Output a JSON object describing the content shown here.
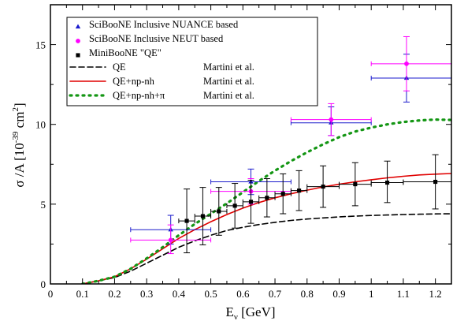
{
  "chart_data": {
    "type": "scatter",
    "xlabel": {
      "main": "E",
      "sub": "ν",
      "rest": " [GeV]"
    },
    "ylabel": {
      "main": "σ /A [10",
      "sup1": "-39",
      "mid": " cm",
      "sup2": "2",
      "end": "]"
    },
    "xlim": [
      0,
      1.25
    ],
    "ylim": [
      0,
      17.5
    ],
    "xticks": [
      0,
      0.1,
      0.2,
      0.3,
      0.4,
      0.5,
      0.6,
      0.7,
      0.8,
      0.9,
      1,
      1.1,
      1.2
    ],
    "xtick_labels": [
      "0",
      "0.1",
      "0.2",
      "0.3",
      "0.4",
      "0.5",
      "0.6",
      "0.7",
      "0.8",
      "0.9",
      "1",
      "1.1",
      "1.2"
    ],
    "yticks": [
      0,
      5,
      10,
      15
    ],
    "ytick_labels": [
      "0",
      "5",
      "10",
      "15"
    ],
    "grid": false,
    "legend_position": "top-left",
    "series": [
      {
        "name": "SciBooNE Inclusive NUANCE based",
        "kind": "points",
        "marker": "triangle",
        "color": "#1a1acc",
        "points": [
          {
            "x": 0.375,
            "y": 3.4,
            "xerr": [
              0.25,
              0.5
            ],
            "yerr": [
              2.5,
              4.3
            ]
          },
          {
            "x": 0.625,
            "y": 6.4,
            "xerr": [
              0.5,
              0.75
            ],
            "yerr": [
              5.6,
              7.2
            ]
          },
          {
            "x": 0.875,
            "y": 10.1,
            "xerr": [
              0.75,
              1.0
            ],
            "yerr": [
              9.3,
              11.1
            ]
          },
          {
            "x": 1.11,
            "y": 12.9,
            "xerr": [
              1.0,
              1.25
            ],
            "yerr": [
              11.4,
              14.4
            ]
          }
        ]
      },
      {
        "name": "SciBooNE Inclusive NEUT based",
        "kind": "points",
        "marker": "circle",
        "color": "#ff00ff",
        "points": [
          {
            "x": 0.375,
            "y": 2.75,
            "xerr": [
              0.25,
              0.5
            ],
            "yerr": [
              1.9,
              3.7
            ]
          },
          {
            "x": 0.625,
            "y": 5.8,
            "xerr": [
              0.5,
              0.75
            ],
            "yerr": [
              5.0,
              6.6
            ]
          },
          {
            "x": 0.875,
            "y": 10.3,
            "xerr": [
              0.75,
              1.0
            ],
            "yerr": [
              9.3,
              11.3
            ]
          },
          {
            "x": 1.11,
            "y": 13.8,
            "xerr": [
              1.0,
              1.25
            ],
            "yerr": [
              12.1,
              15.5
            ]
          }
        ]
      },
      {
        "name": "MiniBooNE \"QE\"",
        "kind": "points",
        "marker": "square",
        "color": "#000000",
        "points": [
          {
            "x": 0.425,
            "y": 3.95,
            "xerr": [
              0.4,
              0.45
            ],
            "yerr": [
              1.95,
              5.95
            ]
          },
          {
            "x": 0.475,
            "y": 4.25,
            "xerr": [
              0.45,
              0.5
            ],
            "yerr": [
              2.45,
              6.05
            ]
          },
          {
            "x": 0.525,
            "y": 4.55,
            "xerr": [
              0.5,
              0.55
            ],
            "yerr": [
              3.05,
              6.05
            ]
          },
          {
            "x": 0.575,
            "y": 4.9,
            "xerr": [
              0.55,
              0.6
            ],
            "yerr": [
              3.5,
              6.3
            ]
          },
          {
            "x": 0.625,
            "y": 5.15,
            "xerr": [
              0.6,
              0.65
            ],
            "yerr": [
              3.8,
              6.5
            ]
          },
          {
            "x": 0.675,
            "y": 5.4,
            "xerr": [
              0.65,
              0.7
            ],
            "yerr": [
              4.2,
              6.6
            ]
          },
          {
            "x": 0.725,
            "y": 5.65,
            "xerr": [
              0.7,
              0.75
            ],
            "yerr": [
              4.4,
              6.9
            ]
          },
          {
            "x": 0.775,
            "y": 5.85,
            "xerr": [
              0.75,
              0.8
            ],
            "yerr": [
              4.6,
              7.1
            ]
          },
          {
            "x": 0.85,
            "y": 6.1,
            "xerr": [
              0.8,
              0.9
            ],
            "yerr": [
              4.8,
              7.4
            ]
          },
          {
            "x": 0.95,
            "y": 6.25,
            "xerr": [
              0.9,
              1.0
            ],
            "yerr": [
              4.9,
              7.6
            ]
          },
          {
            "x": 1.05,
            "y": 6.35,
            "xerr": [
              1.0,
              1.1
            ],
            "yerr": [
              5.1,
              7.7
            ]
          },
          {
            "x": 1.2,
            "y": 6.4,
            "xerr": [
              1.1,
              1.3
            ],
            "yerr": [
              4.7,
              8.1
            ]
          }
        ]
      },
      {
        "name": "QE",
        "author": "Martini et al.",
        "kind": "line",
        "style": "dashed",
        "color": "#000000",
        "x": [
          0.1,
          0.15,
          0.2,
          0.25,
          0.3,
          0.35,
          0.4,
          0.45,
          0.5,
          0.55,
          0.6,
          0.65,
          0.7,
          0.75,
          0.8,
          0.85,
          0.9,
          0.95,
          1.0,
          1.05,
          1.1,
          1.15,
          1.2,
          1.25
        ],
        "y": [
          0.0,
          0.2,
          0.4,
          0.8,
          1.3,
          1.8,
          2.3,
          2.7,
          3.05,
          3.35,
          3.55,
          3.72,
          3.86,
          3.98,
          4.07,
          4.14,
          4.2,
          4.25,
          4.29,
          4.32,
          4.35,
          4.37,
          4.39,
          4.4
        ]
      },
      {
        "name": "QE+np-nh",
        "author": "Martini et al.",
        "kind": "line",
        "style": "solid",
        "color": "#e00000",
        "x": [
          0.1,
          0.15,
          0.2,
          0.25,
          0.3,
          0.35,
          0.4,
          0.45,
          0.5,
          0.55,
          0.6,
          0.65,
          0.7,
          0.75,
          0.8,
          0.85,
          0.9,
          0.95,
          1.0,
          1.05,
          1.1,
          1.15,
          1.2,
          1.25
        ],
        "y": [
          0.0,
          0.2,
          0.45,
          0.95,
          1.55,
          2.2,
          2.85,
          3.4,
          3.9,
          4.35,
          4.75,
          5.1,
          5.4,
          5.65,
          5.88,
          6.08,
          6.25,
          6.4,
          6.53,
          6.65,
          6.75,
          6.83,
          6.88,
          6.92
        ]
      },
      {
        "name": "QE+np-nh+π",
        "author": "Martini et al.",
        "kind": "line",
        "style": "dotted",
        "color": "#149614",
        "x": [
          0.1,
          0.15,
          0.2,
          0.25,
          0.3,
          0.35,
          0.4,
          0.45,
          0.5,
          0.55,
          0.6,
          0.65,
          0.7,
          0.75,
          0.8,
          0.85,
          0.9,
          0.95,
          1.0,
          1.05,
          1.1,
          1.15,
          1.2,
          1.25
        ],
        "y": [
          0.0,
          0.2,
          0.45,
          0.95,
          1.6,
          2.3,
          3.05,
          3.75,
          4.4,
          5.05,
          5.75,
          6.45,
          7.1,
          7.7,
          8.25,
          8.75,
          9.2,
          9.55,
          9.8,
          10.0,
          10.15,
          10.25,
          10.3,
          10.28
        ]
      }
    ]
  }
}
